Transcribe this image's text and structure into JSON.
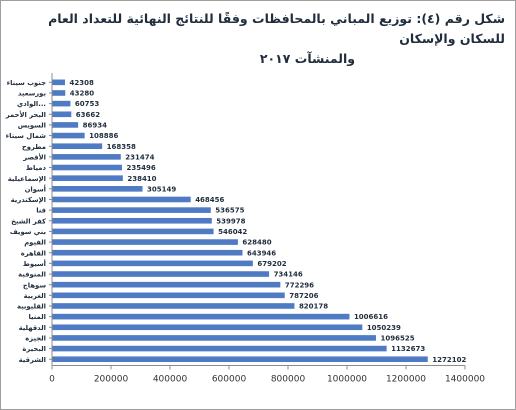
{
  "title_line1": "شكل رقم (٤): توزيع المباني بالمحافظات وفقًا للنتائج النهائية للتعداد العام للسكان والإسكان",
  "title_line2": "والمنشآت ٢٠١٧",
  "chart_data": {
    "type": "bar",
    "orientation": "horizontal",
    "title": "شكل رقم (٤): توزيع المباني بالمحافظات وفقًا للنتائج النهائية للتعداد العام للسكان والإسكان والمنشآت ٢٠١٧",
    "categories": [
      "جنوب سيناء",
      "بورسعيد",
      "الوادي...",
      "البحر الأحمر",
      "السويس",
      "شمال سيناء",
      "مطروح",
      "الأقصر",
      "دمياط",
      "الإسماعيلية",
      "أسوان",
      "الإسكندرية",
      "قنا",
      "كفر الشيخ",
      "بني سويف",
      "الفيوم",
      "القاهرة",
      "أسيوط",
      "المنوفية",
      "سوهاج",
      "الغربية",
      "القليوبية",
      "المنيا",
      "الدقهلية",
      "الجيزة",
      "البحيرة",
      "الشرقية"
    ],
    "values": [
      42308,
      43280,
      60753,
      63662,
      86934,
      108886,
      168358,
      231474,
      235496,
      238410,
      305149,
      468456,
      536575,
      539978,
      546042,
      628480,
      643946,
      679202,
      734146,
      772296,
      787206,
      820178,
      1006616,
      1050239,
      1096525,
      1132673,
      1272102
    ],
    "value_labels": [
      "42308",
      "43280",
      "60753",
      "63662",
      "86934",
      "108886",
      "168358",
      "231474",
      "235496",
      "238410",
      "305149",
      "468456",
      "536575",
      "539978",
      "546042",
      "628480",
      "643946",
      "679202",
      "734146",
      "772296",
      "787206",
      "820178",
      "1006616",
      "1050239",
      "1096525",
      "1132673",
      "1272102"
    ],
    "xlim": [
      0,
      1400000
    ],
    "x_ticks": [
      0,
      200000,
      400000,
      600000,
      800000,
      1000000,
      1200000,
      1400000
    ],
    "x_tick_labels": [
      "0",
      "200000",
      "400000",
      "600000",
      "800000",
      "1000000",
      "1200000",
      "1400000"
    ],
    "grid": false,
    "legend": "none",
    "bar_color": "#4f7ac4"
  }
}
